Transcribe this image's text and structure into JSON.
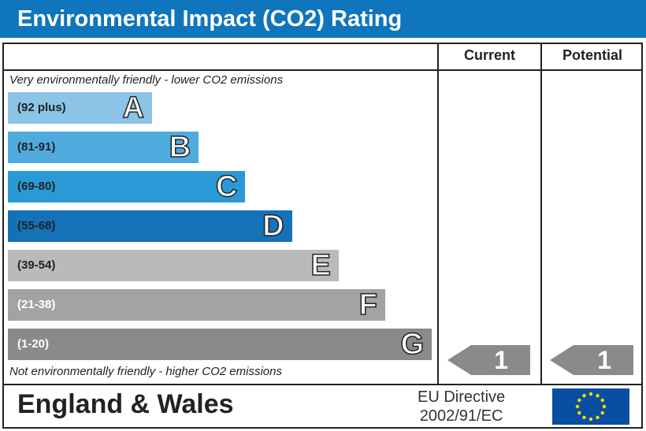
{
  "title": "Environmental Impact (CO2) Rating",
  "columns": {
    "current": "Current",
    "potential": "Potential"
  },
  "top_note": "Very environmentally friendly - lower CO2 emissions",
  "bottom_note": "Not environmentally friendly - higher CO2 emissions",
  "chart_data": {
    "type": "bar",
    "bands": [
      {
        "letter": "A",
        "range": "(92 plus)",
        "color": "#8cc4e8",
        "text": "#222"
      },
      {
        "letter": "B",
        "range": "(81-91)",
        "color": "#4fabde",
        "text": "#222"
      },
      {
        "letter": "C",
        "range": "(69-80)",
        "color": "#2a9ad6",
        "text": "#222"
      },
      {
        "letter": "D",
        "range": "(55-68)",
        "color": "#1372b8",
        "text": "#222"
      },
      {
        "letter": "E",
        "range": "(39-54)",
        "color": "#bababa",
        "text": "#222"
      },
      {
        "letter": "F",
        "range": "(21-38)",
        "color": "#a3a3a3",
        "text": "#fff"
      },
      {
        "letter": "G",
        "range": "(1-20)",
        "color": "#8a8a8a",
        "text": "#fff"
      }
    ],
    "current": "1",
    "potential": "1",
    "arrow_color": "#8a8a8a"
  },
  "footer": {
    "region": "England & Wales",
    "directive_line1": "EU Directive",
    "directive_line2": "2002/91/EC"
  }
}
